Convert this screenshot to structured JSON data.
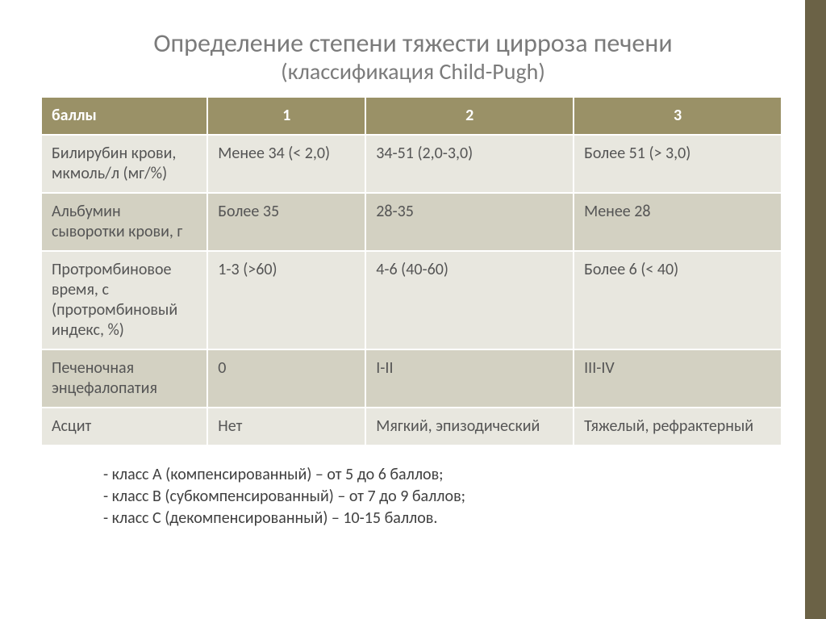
{
  "title_line1": "Определение степени тяжести цирроза печени",
  "title_line2": "(классификация Child-Pugh)",
  "table": {
    "header_bg": "#9a9167",
    "header_color": "#ffffff",
    "row_odd_bg": "#e8e7df",
    "row_even_bg": "#d3d1c2",
    "border_color": "#ffffff",
    "columns": [
      "баллы",
      "1",
      "2",
      "3"
    ],
    "rows": [
      [
        "Билирубин крови, мкмоль/л (мг/%)",
        "Менее 34 (< 2,0)",
        "34-51 (2,0-3,0)",
        "Более 51 (> 3,0)"
      ],
      [
        "Альбумин сыворотки крови, г",
        "Более 35",
        "28-35",
        "Менее 28"
      ],
      [
        "Протромбиновое время, с (протромбиновый индекс, %)",
        "1-3 (>60)",
        "4-6 (40-60)",
        "Более 6 (< 40)"
      ],
      [
        "Печеночная энцефалопатия",
        "0",
        "I-II",
        "III-IV"
      ],
      [
        "Асцит",
        "Нет",
        "Мягкий, эпизодический",
        "Тяжелый, рефрактерный"
      ]
    ]
  },
  "footnotes": [
    "- класс А (компенсированный) – от 5 до 6 баллов;",
    "- класс В (субкомпенсированный) – от 7 до 9 баллов;",
    "- класс С (декомпенсированный) – 10-15 баллов."
  ],
  "sidebar_color": "#6b6246"
}
